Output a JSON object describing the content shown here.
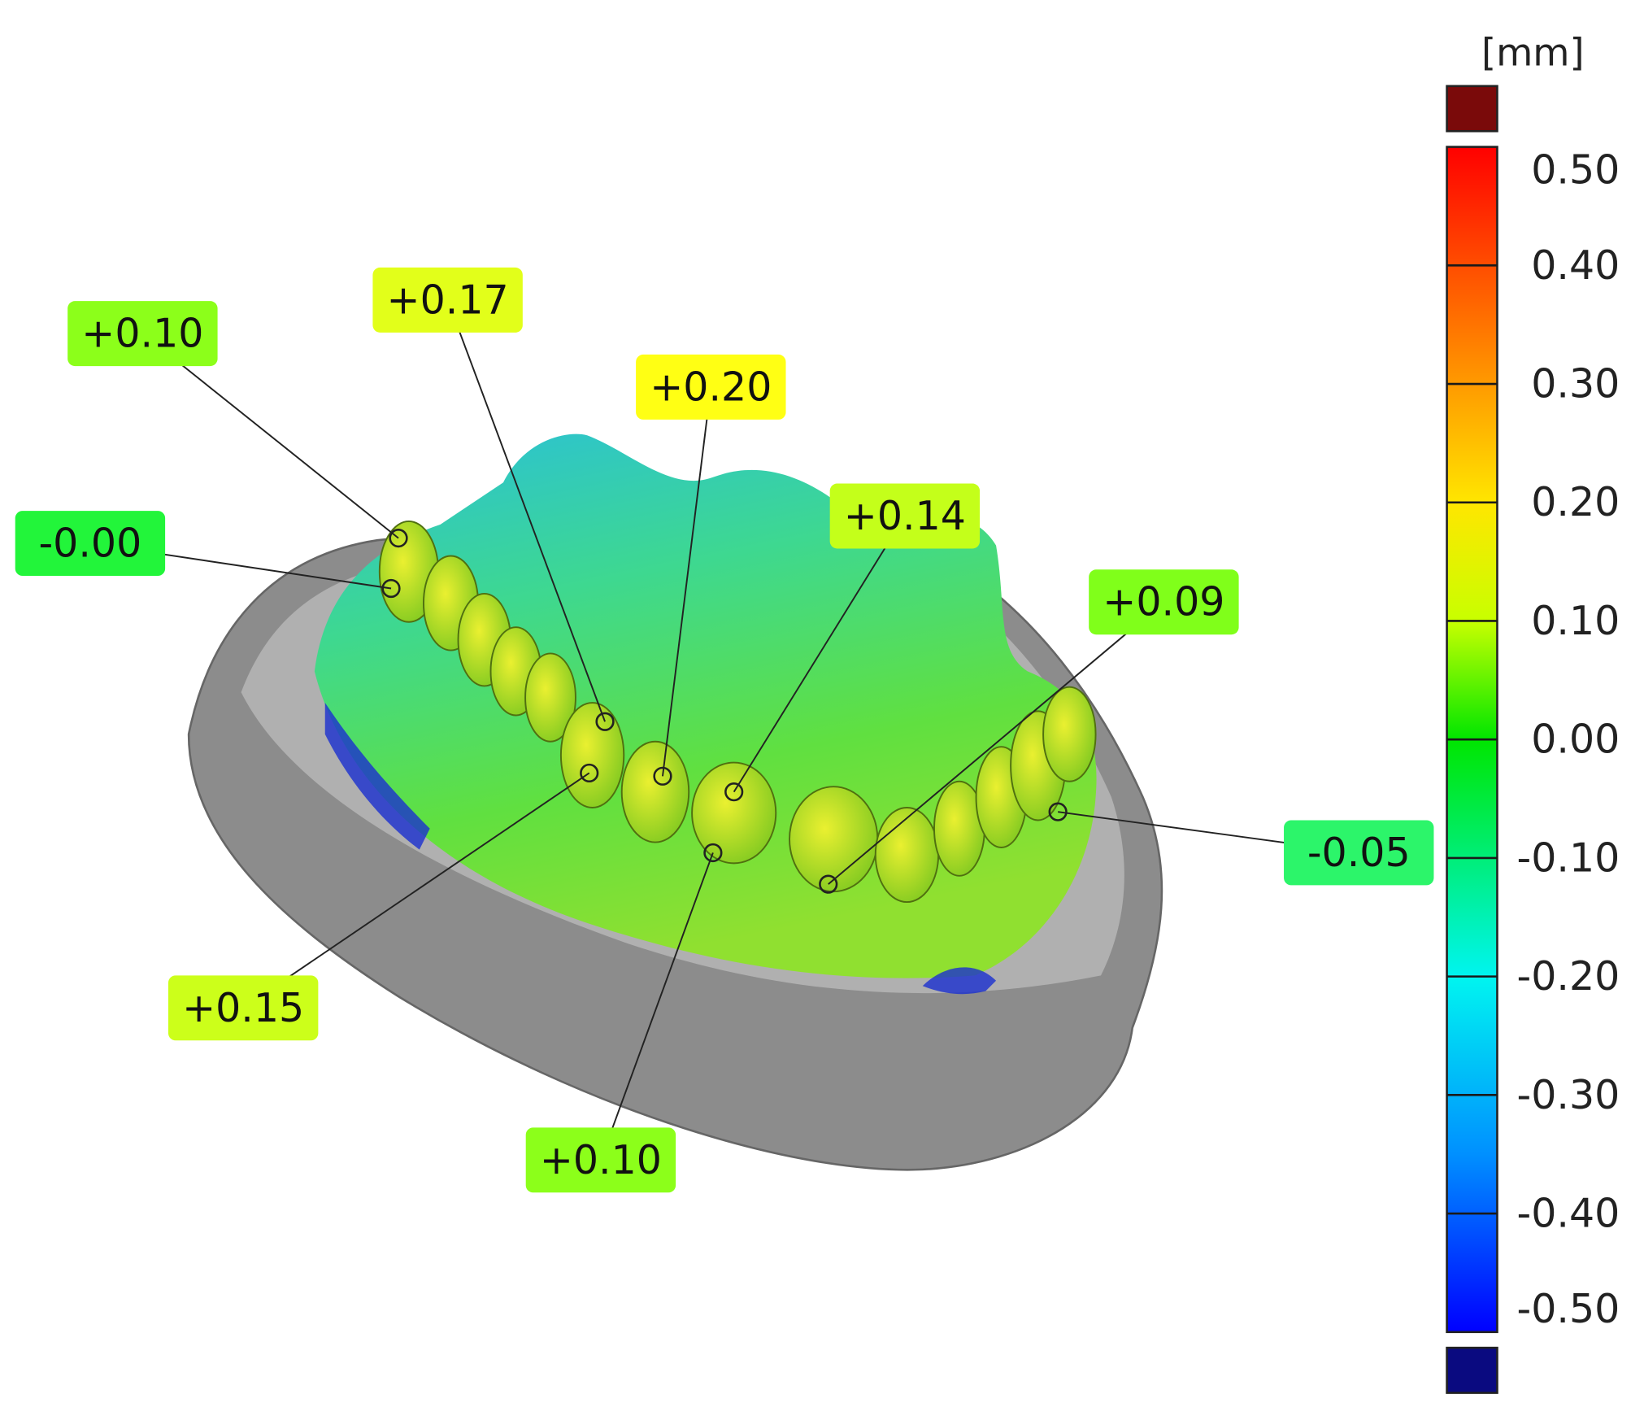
{
  "scale": {
    "unit": "[mm]",
    "ticks": [
      "0.50",
      "0.40",
      "0.30",
      "0.20",
      "0.10",
      "0.00",
      "-0.10",
      "-0.20",
      "-0.30",
      "-0.40",
      "-0.50"
    ]
  },
  "annotations": [
    {
      "text": "+0.10",
      "color": "#8cff1a"
    },
    {
      "text": "+0.17",
      "color": "#e2ff1a"
    },
    {
      "text": "+0.20",
      "color": "#ffff14"
    },
    {
      "text": "+0.14",
      "color": "#c4ff1a"
    },
    {
      "text": "+0.09",
      "color": "#80ff1a"
    },
    {
      "text": "-0.00",
      "color": "#22f53a"
    },
    {
      "text": "-0.05",
      "color": "#2cf56a"
    },
    {
      "text": "+0.15",
      "color": "#ccff1a"
    },
    {
      "text": "+0.10",
      "color": "#8cff1a"
    }
  ]
}
